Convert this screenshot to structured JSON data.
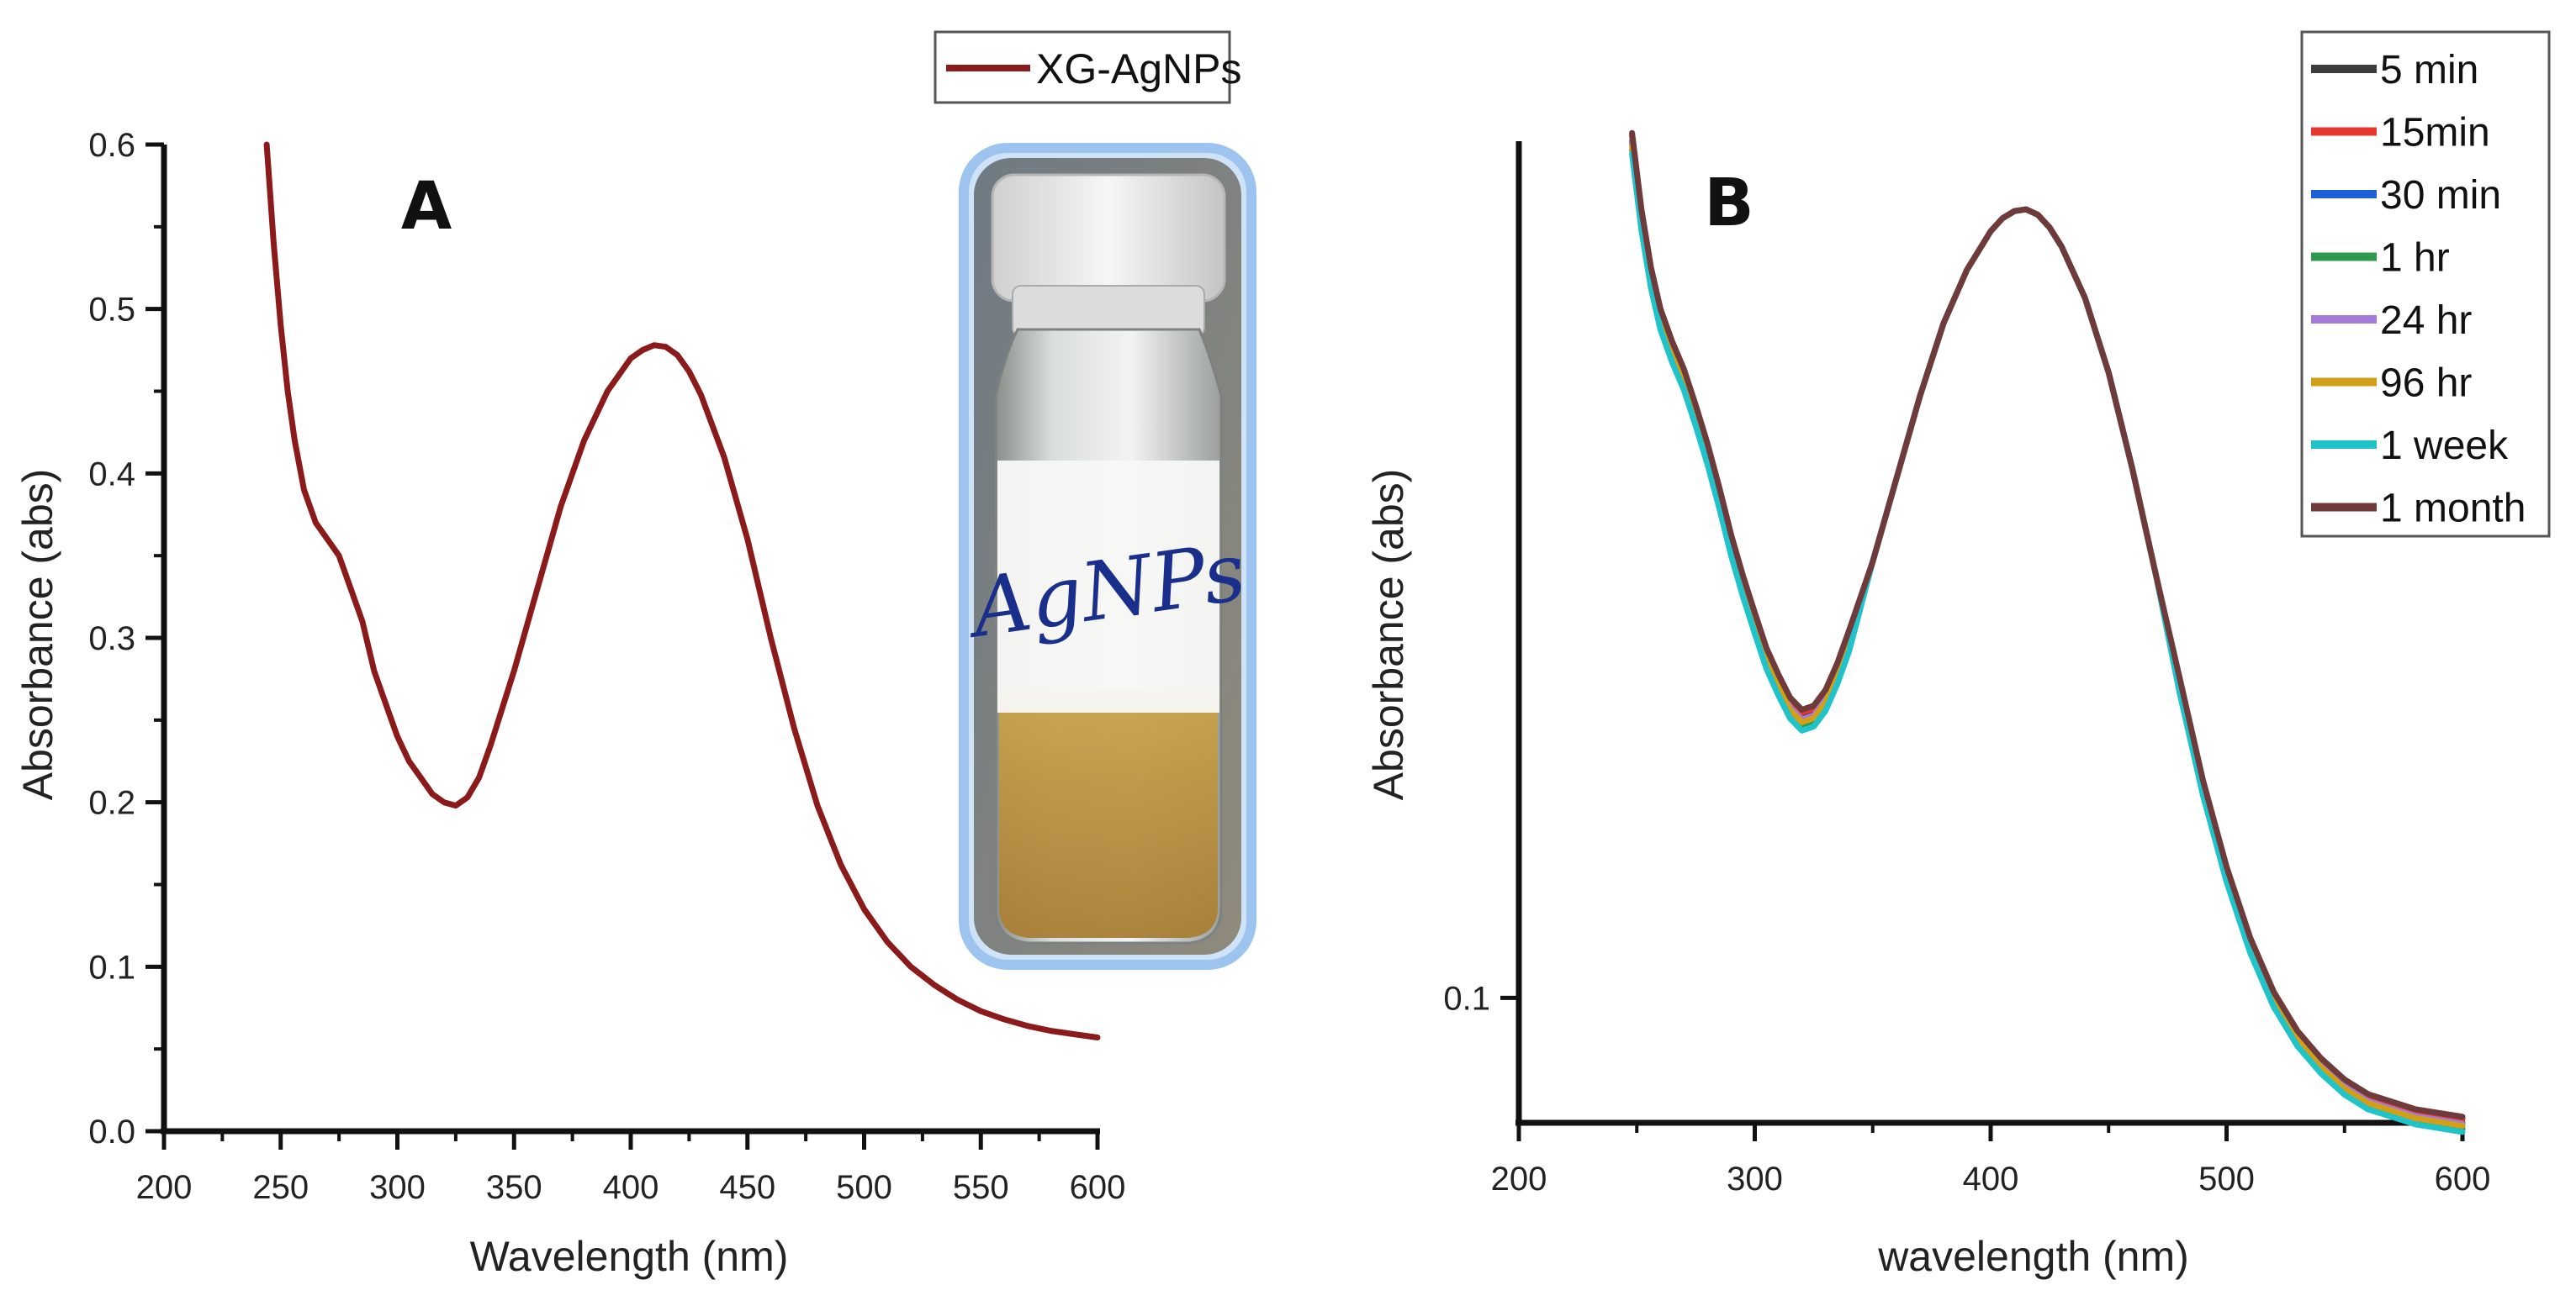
{
  "chart_data": [
    {
      "id": "A",
      "type": "line",
      "panel_label": "A",
      "xlabel": "Wavelength (nm)",
      "ylabel": "Absorbance (abs)",
      "xlim": [
        200,
        600
      ],
      "ylim": [
        0.0,
        0.6
      ],
      "xticks": [
        "200",
        "250",
        "300",
        "350",
        "400",
        "450",
        "500",
        "550",
        "600"
      ],
      "yticks": [
        "0.0",
        "0.1",
        "0.2",
        "0.3",
        "0.4",
        "0.5",
        "0.6"
      ],
      "legend_position": "top-center",
      "series": [
        {
          "name": "XG-AgNPs",
          "color": "#8b1a1a",
          "x": [
            244,
            247,
            250,
            253,
            256,
            260,
            265,
            270,
            275,
            280,
            285,
            290,
            295,
            300,
            305,
            310,
            315,
            320,
            325,
            330,
            335,
            340,
            350,
            360,
            370,
            380,
            390,
            400,
            405,
            410,
            415,
            420,
            425,
            430,
            440,
            450,
            460,
            470,
            480,
            490,
            500,
            510,
            520,
            530,
            540,
            550,
            560,
            570,
            580,
            590,
            600
          ],
          "y": [
            0.6,
            0.54,
            0.49,
            0.45,
            0.42,
            0.39,
            0.37,
            0.36,
            0.35,
            0.33,
            0.31,
            0.28,
            0.26,
            0.24,
            0.225,
            0.215,
            0.205,
            0.2,
            0.198,
            0.203,
            0.215,
            0.235,
            0.28,
            0.33,
            0.38,
            0.42,
            0.45,
            0.47,
            0.475,
            0.478,
            0.477,
            0.472,
            0.462,
            0.448,
            0.41,
            0.36,
            0.3,
            0.245,
            0.198,
            0.162,
            0.135,
            0.115,
            0.1,
            0.089,
            0.08,
            0.073,
            0.068,
            0.064,
            0.061,
            0.059,
            0.057
          ]
        }
      ]
    },
    {
      "id": "B",
      "type": "line",
      "panel_label": "B",
      "xlabel": "wavelength (nm)",
      "ylabel": "Absorbance (abs)",
      "xlim": [
        200,
        600
      ],
      "ylim": [
        0.082,
        0.39
      ],
      "yscale": "log",
      "xticks": [
        "200",
        "300",
        "400",
        "500",
        "600"
      ],
      "yticks": [
        "0.1"
      ],
      "ytick_values": [
        0.1
      ],
      "legend_position": "top-right",
      "series": [
        {
          "name": "5 min",
          "color": "#3d3d3d",
          "offset": 0.0
        },
        {
          "name": "15min",
          "color": "#e8372f",
          "offset": 0.004
        },
        {
          "name": "30 min",
          "color": "#1d5fd6",
          "offset": -0.002
        },
        {
          "name": "1 hr",
          "color": "#2e9a4e",
          "offset": -0.006
        },
        {
          "name": "24 hr",
          "color": "#a57bd9",
          "offset": -0.001
        },
        {
          "name": "96 hr",
          "color": "#d2a016",
          "offset": -0.003
        },
        {
          "name": "1 week",
          "color": "#20c3c9",
          "offset": -0.009
        },
        {
          "name": "1 month",
          "color": "#6e3a3a",
          "offset": 0.006
        }
      ],
      "base_curve": {
        "x": [
          248,
          252,
          256,
          260,
          265,
          270,
          275,
          280,
          285,
          290,
          295,
          300,
          305,
          310,
          315,
          320,
          325,
          330,
          335,
          340,
          350,
          360,
          370,
          380,
          390,
          400,
          405,
          410,
          415,
          420,
          425,
          430,
          440,
          450,
          460,
          470,
          480,
          490,
          500,
          510,
          520,
          530,
          540,
          550,
          560,
          570,
          580,
          590,
          600
        ],
        "y": [
          0.39,
          0.345,
          0.315,
          0.295,
          0.28,
          0.268,
          0.253,
          0.238,
          0.222,
          0.206,
          0.193,
          0.182,
          0.172,
          0.165,
          0.159,
          0.156,
          0.157,
          0.161,
          0.168,
          0.177,
          0.2,
          0.228,
          0.26,
          0.292,
          0.318,
          0.338,
          0.345,
          0.349,
          0.35,
          0.347,
          0.34,
          0.33,
          0.304,
          0.27,
          0.232,
          0.196,
          0.165,
          0.14,
          0.122,
          0.109,
          0.1,
          0.094,
          0.09,
          0.087,
          0.085,
          0.084,
          0.083,
          0.0825,
          0.082
        ]
      }
    }
  ],
  "inset_photo": {
    "vial_label": "AgNPs"
  }
}
